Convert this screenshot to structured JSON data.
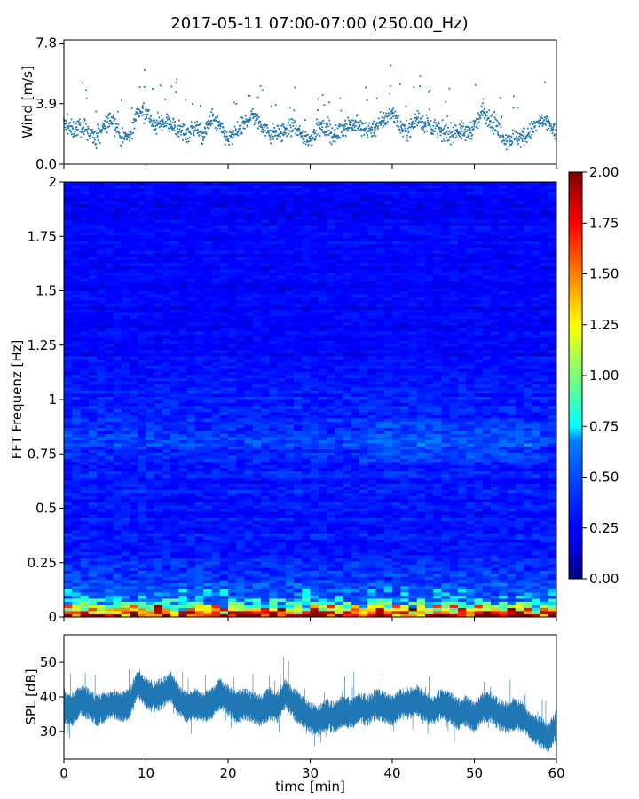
{
  "figure": {
    "title": "2017-05-11 07:00-07:00 (250.00_Hz)"
  },
  "chart_data": [
    {
      "id": "wind",
      "type": "scatter",
      "ylabel": "Wind [m/s]",
      "xlabel": "",
      "xlim": [
        0,
        60
      ],
      "ylim": [
        0,
        8.0
      ],
      "yticks": [
        0.0,
        3.9,
        7.8
      ],
      "ytick_labels": [
        "0.0",
        "3.9",
        "7.8"
      ],
      "xticks": [
        0,
        10,
        20,
        30,
        40,
        50,
        60
      ],
      "grid": false,
      "color": "#1f77b4",
      "series": [
        {
          "x": [
            0,
            1,
            2,
            3,
            4,
            5,
            6,
            7,
            8,
            9,
            10,
            11,
            12,
            13,
            14,
            15,
            16,
            17,
            18,
            19,
            20,
            21,
            22,
            23,
            24,
            25,
            26,
            27,
            28,
            29,
            30,
            31,
            32,
            33,
            34,
            35,
            36,
            37,
            38,
            39,
            40,
            41,
            42,
            43,
            44,
            45,
            46,
            47,
            48,
            49,
            50,
            51,
            52,
            53,
            54,
            55,
            56,
            57,
            58,
            59,
            60
          ],
          "values": [
            2.6,
            2.2,
            2.4,
            2.1,
            1.6,
            2.5,
            3.0,
            1.6,
            1.8,
            3.4,
            3.5,
            2.4,
            2.8,
            2.6,
            2.2,
            2.0,
            2.4,
            1.8,
            3.0,
            2.4,
            1.6,
            2.0,
            2.6,
            3.2,
            2.6,
            2.0,
            2.0,
            2.2,
            2.4,
            1.8,
            1.6,
            2.4,
            2.2,
            1.8,
            2.4,
            2.6,
            2.4,
            2.2,
            2.4,
            2.8,
            3.4,
            2.4,
            2.2,
            3.0,
            2.6,
            2.4,
            2.0,
            2.0,
            2.2,
            2.0,
            2.4,
            3.4,
            2.8,
            2.0,
            1.6,
            1.8,
            1.6,
            2.2,
            2.8,
            2.6,
            2.0
          ]
        }
      ]
    },
    {
      "id": "spectrogram",
      "type": "heatmap",
      "ylabel": "FFT Frequenz [Hz]",
      "xlabel": "",
      "xlim": [
        0,
        60
      ],
      "ylim": [
        0,
        2
      ],
      "yticks": [
        0,
        0.25,
        0.5,
        0.75,
        1,
        1.25,
        1.5,
        1.75,
        2
      ],
      "ytick_labels": [
        "0",
        "0.25",
        "0.5",
        "0.75",
        "1",
        "1.25",
        "1.5",
        "1.75",
        "2"
      ],
      "xticks": [
        0,
        10,
        20,
        30,
        40,
        50,
        60
      ],
      "colormap": "jet",
      "colorbar": {
        "min": 0,
        "max": 2,
        "ticks": [
          0,
          0.25,
          0.5,
          0.75,
          1.0,
          1.25,
          1.5,
          1.75,
          2.0
        ],
        "tick_labels": [
          "0.00",
          "0.25",
          "0.50",
          "0.75",
          "1.00",
          "1.25",
          "1.50",
          "1.75",
          "2.00"
        ]
      },
      "frequency_profile": {
        "freq": [
          0,
          0.02,
          0.05,
          0.08,
          0.12,
          0.2,
          0.3,
          0.5,
          0.7,
          0.8,
          0.9,
          1.0,
          1.2,
          1.5,
          1.8,
          2.0
        ],
        "level": [
          1.9,
          1.4,
          0.9,
          0.7,
          0.55,
          0.42,
          0.35,
          0.32,
          0.34,
          0.45,
          0.4,
          0.33,
          0.26,
          0.24,
          0.25,
          0.24
        ]
      }
    },
    {
      "id": "spl",
      "type": "line",
      "ylabel": "SPL [dB]",
      "xlabel": "time [min]",
      "xlim": [
        0,
        60
      ],
      "ylim": [
        22,
        58
      ],
      "yticks": [
        30,
        40,
        50
      ],
      "ytick_labels": [
        "30",
        "40",
        "50"
      ],
      "xticks": [
        0,
        10,
        20,
        30,
        40,
        50,
        60
      ],
      "xtick_labels": [
        "0",
        "10",
        "20",
        "30",
        "40",
        "50",
        "60"
      ],
      "grid": false,
      "color": "#1f77b4",
      "series": [
        {
          "x": [
            0,
            1,
            2,
            3,
            4,
            5,
            6,
            7,
            8,
            9,
            10,
            11,
            12,
            13,
            14,
            15,
            16,
            17,
            18,
            19,
            20,
            21,
            22,
            23,
            24,
            25,
            26,
            27,
            28,
            29,
            30,
            31,
            32,
            33,
            34,
            35,
            36,
            37,
            38,
            39,
            40,
            41,
            42,
            43,
            44,
            45,
            46,
            47,
            48,
            49,
            50,
            51,
            52,
            53,
            54,
            55,
            56,
            57,
            58,
            59,
            60
          ],
          "values": [
            37,
            36,
            39,
            38,
            36,
            37,
            38,
            37,
            38,
            44,
            41,
            40,
            41,
            43,
            39,
            37,
            38,
            37,
            38,
            41,
            39,
            37,
            38,
            37,
            36,
            38,
            37,
            41,
            38,
            36,
            34,
            33,
            35,
            34,
            36,
            35,
            37,
            36,
            38,
            37,
            36,
            38,
            38,
            39,
            37,
            36,
            38,
            37,
            35,
            36,
            34,
            37,
            37,
            35,
            34,
            35,
            34,
            31,
            30,
            28,
            32
          ]
        }
      ]
    }
  ]
}
